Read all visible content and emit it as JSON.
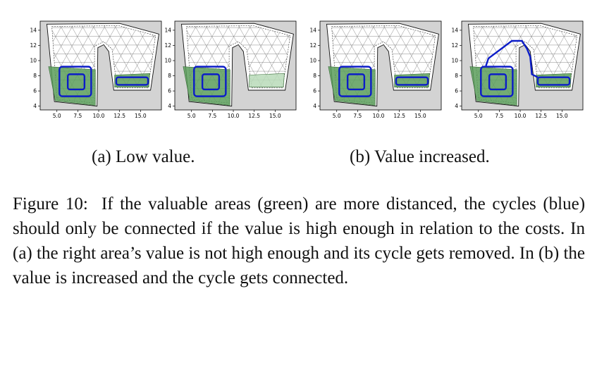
{
  "subcaptions": {
    "a": "(a) Low value.",
    "b": "(b) Value increased."
  },
  "caption": {
    "label": "Figure 10:",
    "text": "If the valuable areas (green) are more distanced, the cycles (blue) should only be connected if the value is high enough in relation to the costs. In (a) the right area’s value is not high enough and its cycle gets removed. In (b) the value is increased and the cycle gets connected."
  },
  "plots": {
    "x_ticks": [
      "5.0",
      "7.5",
      "10.0",
      "12.5",
      "15.0"
    ],
    "y_ticks": [
      "4",
      "6",
      "8",
      "10",
      "12",
      "14"
    ],
    "x_range": [
      3,
      17.5
    ],
    "y_range": [
      3.5,
      15.2
    ],
    "panels": [
      {
        "name": "low-value-cycles",
        "right_area": "high",
        "right_cycle": true,
        "connected": false
      },
      {
        "name": "low-value-removed",
        "right_area": "low",
        "right_cycle": false,
        "connected": false
      },
      {
        "name": "increased-value-cycles",
        "right_area": "high",
        "right_cycle": true,
        "connected": false
      },
      {
        "name": "increased-value-connected",
        "right_area": "high",
        "right_cycle": true,
        "connected": true
      }
    ],
    "colors": {
      "background": "#d3d3d3",
      "field": "#ffffff",
      "green_area": "#5a9e5a",
      "light_green_area": "#b9dab9",
      "cycle": "#0b1cc8",
      "mesh": "#555555"
    }
  }
}
